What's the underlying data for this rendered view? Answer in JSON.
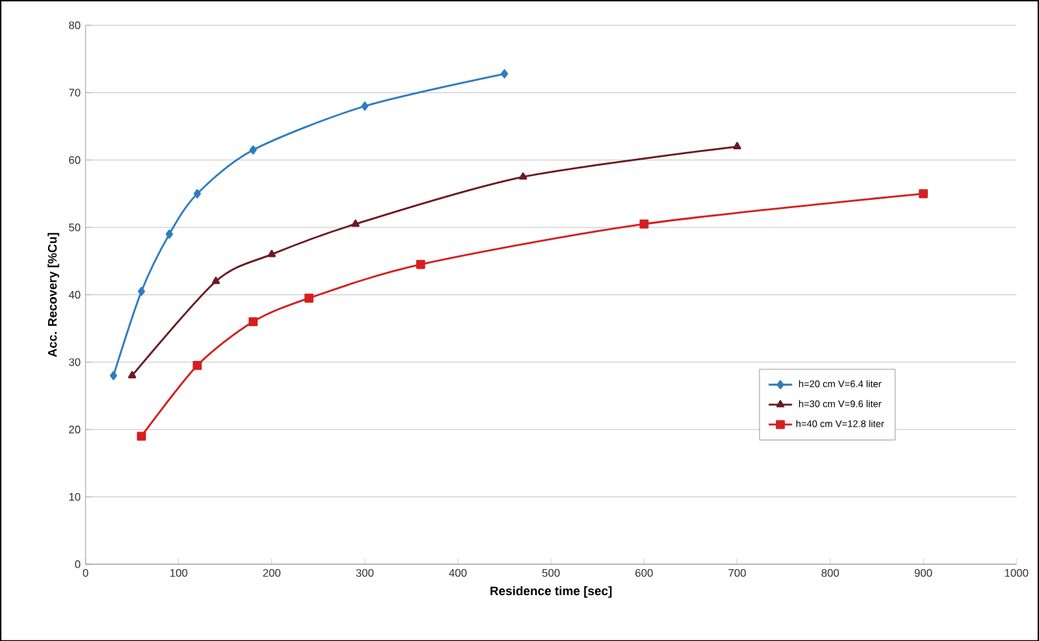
{
  "chart_data": {
    "type": "line",
    "xlabel": "Residence time [sec]",
    "ylabel": "Acc. Recovery [%Cu]",
    "xlim": [
      0,
      1000
    ],
    "xticks": [
      0,
      100,
      200,
      300,
      400,
      500,
      600,
      700,
      800,
      900,
      1000
    ],
    "ylim": [
      0,
      80
    ],
    "yticks": [
      0,
      10,
      20,
      30,
      40,
      50,
      60,
      70,
      80
    ],
    "grid": "y",
    "legend": "right",
    "series": [
      {
        "name": "h=20 cm V=6.4 liter",
        "color": "#2e7dc0",
        "marker": "diamond",
        "x": [
          30,
          60,
          90,
          120,
          180,
          300,
          450
        ],
        "values": [
          28,
          40.5,
          49,
          55,
          61.5,
          68,
          72.8
        ]
      },
      {
        "name": "h=30 cm V=9.6 liter",
        "color": "#6b1a22",
        "marker": "triangle",
        "x": [
          50,
          140,
          200,
          290,
          470,
          700
        ],
        "values": [
          28,
          42,
          46,
          50.5,
          57.5,
          62
        ]
      },
      {
        "name": "h=40 cm V=12.8 liter",
        "color": "#d42020",
        "marker": "square",
        "x": [
          60,
          120,
          180,
          240,
          360,
          600,
          900
        ],
        "values": [
          19,
          29.5,
          36,
          39.5,
          44.5,
          50.5,
          55
        ]
      }
    ]
  }
}
